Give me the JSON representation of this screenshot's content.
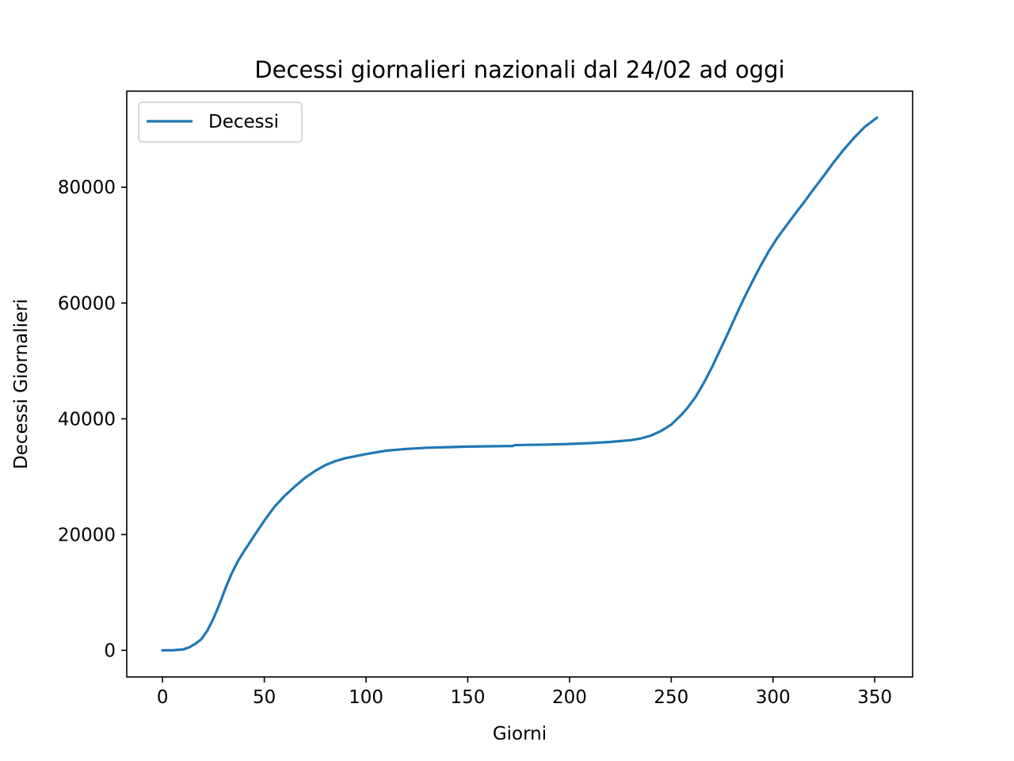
{
  "chart_data": {
    "type": "line",
    "title": "Decessi giornalieri nazionali dal 24/02 ad oggi",
    "xlabel": "Giorni",
    "ylabel": "Decessi Giornalieri",
    "xlim": [
      -17.6,
      368.6
    ],
    "ylim": [
      -4600,
      96600
    ],
    "xticks": [
      0,
      50,
      100,
      150,
      200,
      250,
      300,
      350
    ],
    "xtick_labels": [
      "0",
      "50",
      "100",
      "150",
      "200",
      "250",
      "300",
      "350"
    ],
    "yticks": [
      0,
      20000,
      40000,
      60000,
      80000
    ],
    "ytick_labels": [
      "0",
      "20000",
      "40000",
      "60000",
      "80000"
    ],
    "grid": false,
    "legend": {
      "position": "upper left"
    },
    "series": [
      {
        "name": "Decessi",
        "color": "#1f77b4",
        "x": [
          0,
          5,
          10,
          13,
          16,
          19,
          22,
          25,
          28,
          31,
          34,
          37,
          40,
          43,
          46,
          50,
          55,
          60,
          65,
          70,
          75,
          80,
          85,
          90,
          100,
          110,
          120,
          130,
          140,
          150,
          160,
          172,
          173,
          180,
          190,
          200,
          210,
          220,
          230,
          235,
          240,
          245,
          250,
          255,
          258,
          262,
          266,
          270,
          274,
          278,
          282,
          286,
          290,
          294,
          298,
          302,
          306,
          310,
          315,
          320,
          325,
          330,
          335,
          340,
          345,
          351
        ],
        "y": [
          0,
          20,
          150,
          500,
          1100,
          1900,
          3400,
          5500,
          8000,
          10800,
          13300,
          15400,
          17100,
          18700,
          20300,
          22400,
          24800,
          26700,
          28300,
          29800,
          31000,
          32000,
          32700,
          33200,
          33900,
          34500,
          34800,
          35000,
          35100,
          35200,
          35250,
          35300,
          35450,
          35500,
          35550,
          35650,
          35800,
          36000,
          36300,
          36600,
          37100,
          37900,
          39000,
          40700,
          41900,
          43800,
          46200,
          48900,
          51900,
          54900,
          58000,
          61000,
          63800,
          66500,
          69000,
          71200,
          73100,
          75000,
          77300,
          79700,
          82000,
          84400,
          86600,
          88600,
          90400,
          92000
        ]
      }
    ]
  }
}
